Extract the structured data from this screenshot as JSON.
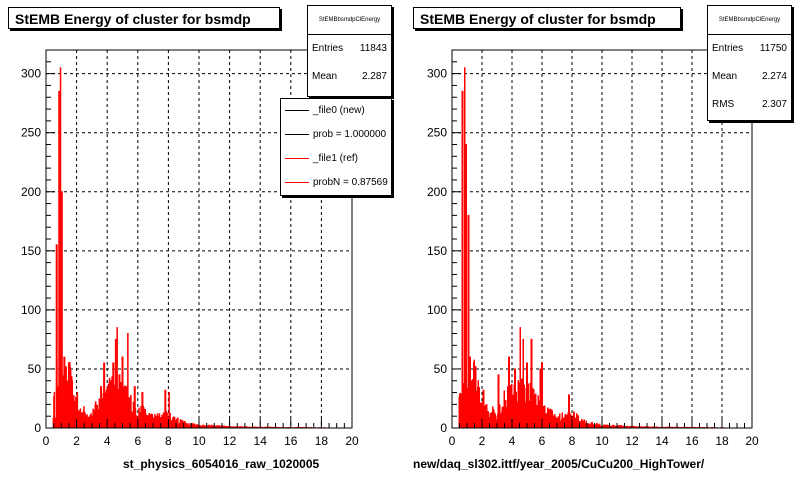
{
  "chart_data": [
    {
      "type": "bar",
      "title": "StEMB Energy of cluster for bsmdp",
      "xlabel": "st_physics_6054016_raw_1020005",
      "xlim": [
        0,
        20
      ],
      "ylim": [
        0,
        320
      ],
      "xticks": [
        "0",
        "2",
        "4",
        "6",
        "8",
        "10",
        "12",
        "14",
        "16",
        "18",
        "20"
      ],
      "yticks": [
        "0",
        "50",
        "100",
        "150",
        "200",
        "250",
        "300"
      ],
      "grid": true,
      "stats": {
        "header": "StEMBbsmdpClEnergy",
        "rows": [
          {
            "label": "Entries",
            "value": "11843"
          },
          {
            "label": "Mean",
            "value": "2.287"
          }
        ]
      },
      "legend": [
        {
          "label": "_file0 (new)",
          "color": "#000000"
        },
        {
          "label": "prob = 1.000000",
          "color": "#000000"
        },
        {
          "label": "_file1 (ref)",
          "color": "#ff0000"
        },
        {
          "label": "probN = 0.87569",
          "color": "#ff0000"
        }
      ],
      "series": [
        {
          "color": "#ff0000",
          "peaks": [
            [
              0.7,
              155
            ],
            [
              0.85,
              285
            ],
            [
              0.95,
              305
            ],
            [
              1.05,
              200
            ],
            [
              1.2,
              60
            ],
            [
              2.05,
              30
            ],
            [
              3.6,
              35
            ],
            [
              3.8,
              55
            ],
            [
              4.2,
              40
            ],
            [
              4.4,
              55
            ],
            [
              4.55,
              75
            ],
            [
              4.65,
              85
            ],
            [
              4.8,
              45
            ],
            [
              5.0,
              60
            ],
            [
              5.35,
              80
            ],
            [
              5.8,
              35
            ],
            [
              6.3,
              30
            ],
            [
              7.8,
              32
            ],
            [
              8.05,
              30
            ]
          ],
          "background": [
            [
              0.5,
              20
            ],
            [
              1.5,
              40
            ],
            [
              2.0,
              15
            ],
            [
              3.0,
              10
            ],
            [
              3.5,
              20
            ],
            [
              4.0,
              30
            ],
            [
              5.0,
              28
            ],
            [
              6.0,
              15
            ],
            [
              7.0,
              8
            ],
            [
              8.0,
              10
            ],
            [
              9.0,
              4
            ],
            [
              10.0,
              2
            ],
            [
              12.0,
              1
            ],
            [
              14.0,
              0.5
            ],
            [
              20.0,
              0
            ]
          ]
        }
      ]
    },
    {
      "type": "bar",
      "title": "StEMB Energy of cluster for bsmdp",
      "xlabel": "new/daq_sl302.ittf/year_2005/CuCu200_HighTower/",
      "xlim": [
        0,
        20
      ],
      "ylim": [
        0,
        320
      ],
      "xticks": [
        "0",
        "2",
        "4",
        "6",
        "8",
        "10",
        "12",
        "14",
        "16",
        "18",
        "20"
      ],
      "yticks": [
        "0",
        "50",
        "100",
        "150",
        "200",
        "250",
        "300"
      ],
      "grid": true,
      "stats": {
        "header": "StEMBbsmdpClEnergy",
        "rows": [
          {
            "label": "Entries",
            "value": "11750"
          },
          {
            "label": "Mean",
            "value": "2.274"
          },
          {
            "label": "RMS",
            "value": "2.307"
          }
        ]
      },
      "series": [
        {
          "color": "#ff0000",
          "peaks": [
            [
              0.7,
              285
            ],
            [
              0.85,
              305
            ],
            [
              0.95,
              240
            ],
            [
              1.1,
              180
            ],
            [
              1.2,
              60
            ],
            [
              2.1,
              32
            ],
            [
              3.1,
              45
            ],
            [
              3.8,
              60
            ],
            [
              4.2,
              50
            ],
            [
              4.55,
              85
            ],
            [
              4.75,
              75
            ],
            [
              5.0,
              55
            ],
            [
              5.3,
              75
            ],
            [
              5.9,
              50
            ],
            [
              6.0,
              55
            ],
            [
              7.8,
              28
            ]
          ],
          "background": [
            [
              0.5,
              20
            ],
            [
              1.5,
              40
            ],
            [
              2.0,
              15
            ],
            [
              3.0,
              12
            ],
            [
              3.5,
              22
            ],
            [
              4.0,
              32
            ],
            [
              5.0,
              30
            ],
            [
              6.0,
              16
            ],
            [
              7.0,
              8
            ],
            [
              8.0,
              10
            ],
            [
              9.0,
              4
            ],
            [
              10.0,
              2
            ],
            [
              12.0,
              1
            ],
            [
              14.0,
              0.5
            ],
            [
              20.0,
              0
            ]
          ]
        }
      ]
    }
  ]
}
